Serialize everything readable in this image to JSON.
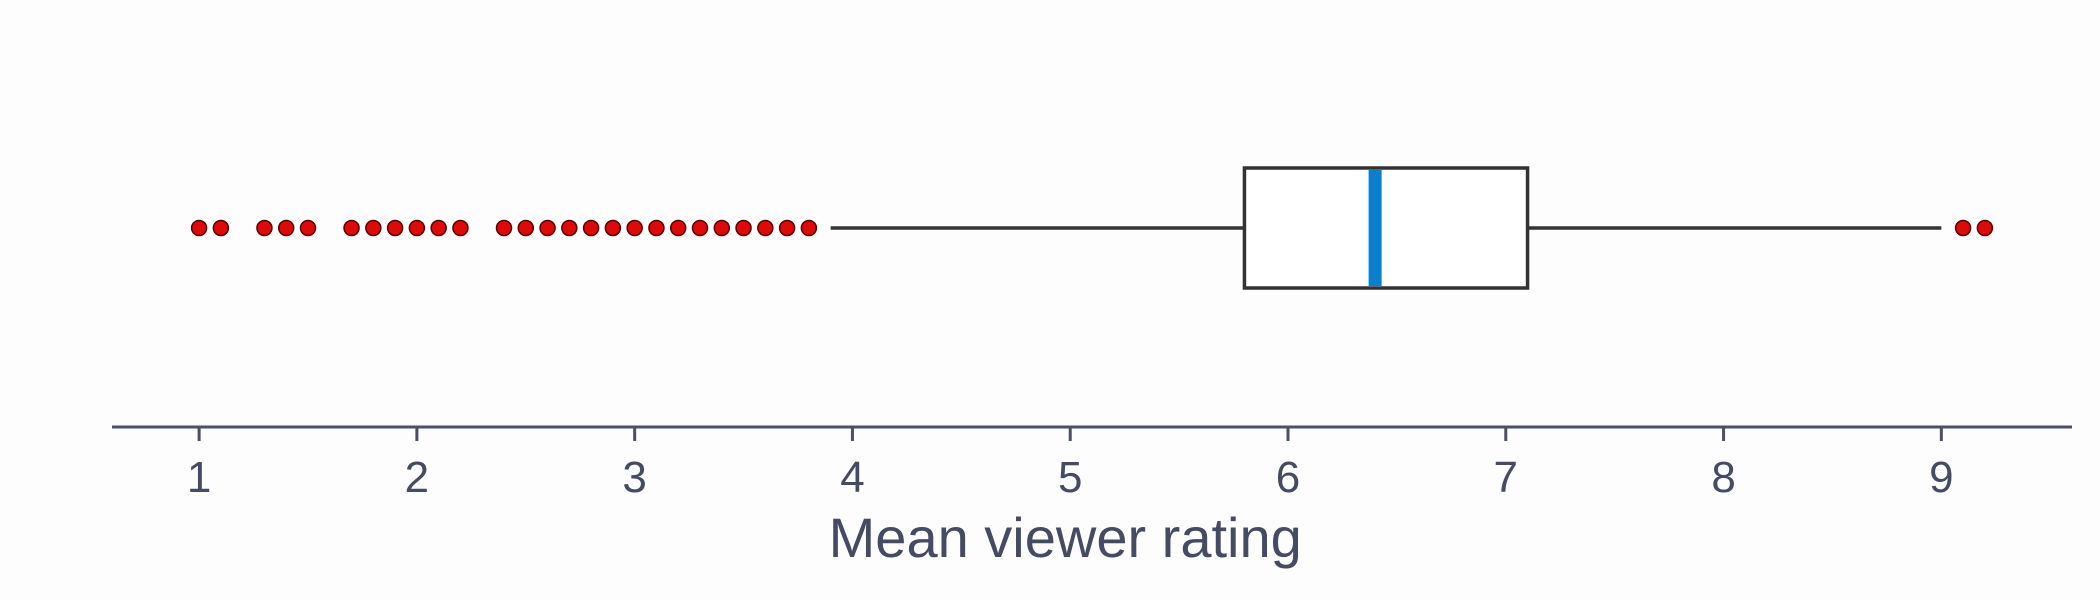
{
  "chart_data": {
    "type": "boxplot",
    "orientation": "horizontal",
    "xlabel": "Mean viewer rating",
    "xlim": [
      0.6,
      9.6
    ],
    "xticks": [
      1,
      2,
      3,
      4,
      5,
      6,
      7,
      8,
      9
    ],
    "box": {
      "whisker_low": 3.9,
      "q1": 5.8,
      "median": 6.4,
      "q3": 7.1,
      "whisker_high": 9.0
    },
    "outliers": [
      1.0,
      1.1,
      1.3,
      1.4,
      1.5,
      1.7,
      1.8,
      1.9,
      2.0,
      2.1,
      2.2,
      2.4,
      2.5,
      2.6,
      2.7,
      2.8,
      2.9,
      3.0,
      3.1,
      3.2,
      3.3,
      3.4,
      3.5,
      3.6,
      3.7,
      3.8,
      9.1,
      9.2
    ],
    "grid": false,
    "legend": "none",
    "colors": {
      "median": "#0a7fcc",
      "outlier": "#dd0a0a",
      "box_stroke": "#333333",
      "axis": "#4a5068"
    }
  }
}
